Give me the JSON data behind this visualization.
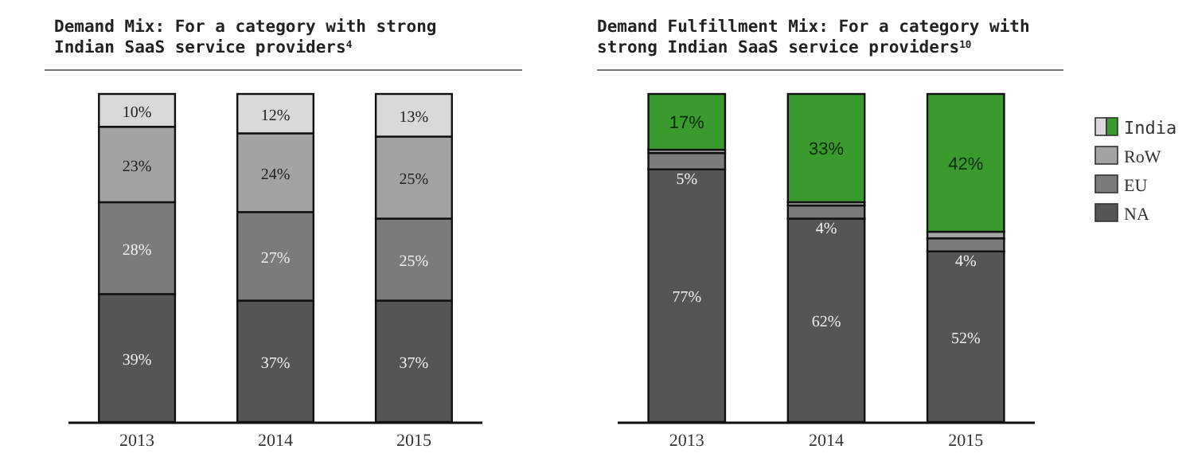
{
  "chart_data": [
    {
      "type": "bar",
      "title": "Demand Mix: For a category with strong Indian SaaS service providers$^{4}$",
      "categories": [
        "2013",
        "2014",
        "2015"
      ],
      "stacked": true,
      "ylim": [
        0,
        100
      ],
      "tick_labels": "x",
      "legend": false,
      "series": [
        {
          "color": "#555555",
          "values": [
            39,
            37,
            37
          ],
          "value_labels": [
            "39%",
            "37%",
            "37%"
          ]
        },
        {
          "color": "#7b7b7b",
          "values": [
            28,
            27,
            25
          ],
          "value_labels": [
            "28%",
            "27%",
            "25%"
          ]
        },
        {
          "color": "#a3a3a3",
          "values": [
            23,
            24,
            25
          ],
          "value_labels": [
            "23%",
            "24%",
            "25%"
          ]
        },
        {
          "color": "#d9d9d9",
          "values": [
            10,
            12,
            13
          ],
          "value_labels": [
            "10%",
            "12%",
            "13%"
          ]
        }
      ]
    },
    {
      "type": "bar",
      "title": "Demand Fulfillment Mix: For a category with strong Indian SaaS service providers$^{10}$",
      "categories": [
        "2013",
        "2014",
        "2015"
      ],
      "stacked": true,
      "ylim": [
        0,
        100
      ],
      "tick_labels": "x",
      "legend": "right",
      "series": [
        {
          "name": "NA",
          "color": "#555555",
          "values": [
            77,
            62,
            52
          ],
          "value_labels": [
            "77%",
            "62%",
            "52%"
          ]
        },
        {
          "name": "EU",
          "color": "#7b7b7b",
          "values": [
            5,
            4,
            4
          ],
          "value_labels": [
            "5%",
            "4%",
            "4%"
          ]
        },
        {
          "name": "RoW",
          "color": "#a3a3a3",
          "values": [
            1,
            1,
            2
          ],
          "value_labels": [
            null,
            null,
            null
          ]
        },
        {
          "name": "India",
          "color": "#3a9a2e",
          "values": [
            17,
            33,
            42
          ],
          "value_labels": [
            "17%",
            "33%",
            "42%"
          ]
        }
      ]
    }
  ]
}
